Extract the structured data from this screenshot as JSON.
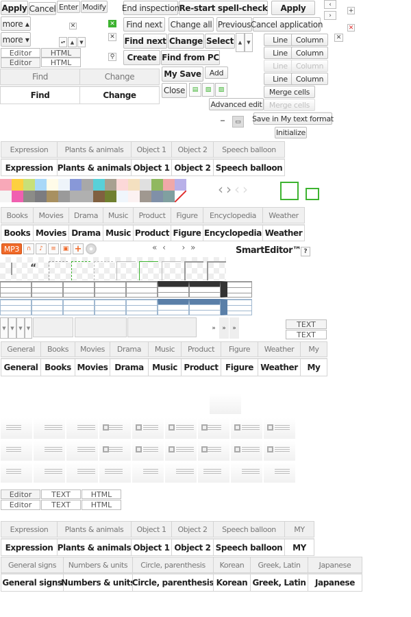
{
  "top_buttons": {
    "apply": "Apply",
    "cancel": "Cancel",
    "enter": "Enter",
    "modify": "Modify",
    "more_up": "more ▴",
    "more_down": "more ▾"
  },
  "mode_tabs_1": {
    "editor": "Editor",
    "html": "HTML",
    "editor2": "Editor",
    "html2": "HTML"
  },
  "find_change": {
    "find": "Find",
    "change": "Change",
    "find_active": "Find",
    "change_active": "Change"
  },
  "spell": {
    "end_inspection": "End inspection",
    "restart": "Re-start spell-check",
    "apply": "Apply"
  },
  "find_bar": {
    "find_next": "Find next",
    "change_all": "Change all",
    "previous": "Previous",
    "cancel_application": "Cancel application"
  },
  "find_bar_bold": {
    "find_next": "Find next",
    "change": "Change",
    "select": "Select"
  },
  "create_bar": {
    "create": "Create",
    "find_from_pc": "Find from PC",
    "my_save": "My Save",
    "add": "Add",
    "close": "Close",
    "advanced_edit": "Advanced edit",
    "save_my_text": "Save in My text format",
    "initialize": "Initialize"
  },
  "table_edit": {
    "line": "Line",
    "column": "Column",
    "merge_cells": "Merge cells"
  },
  "emoticon_tabs": [
    "Expression",
    "Plants & animals",
    "Object 1",
    "Object 2",
    "Speech balloon"
  ],
  "category_tabs": [
    "Books",
    "Movies",
    "Drama",
    "Music",
    "Product",
    "Figure",
    "Encyclopedia",
    "Weather"
  ],
  "swatches": {
    "top": [
      "#f8a8b8",
      "#fdd040",
      "#c8e078",
      "#a8d8f8",
      "#fffbe8",
      "#eef4fa",
      "#8898d8",
      "#a8a8a8",
      "#58d0d8",
      "#a8a090",
      "#fcd8d8",
      "#f4e0c0",
      "#e0e0e0",
      "#90b860",
      "#f0a8a8",
      "#b8b0e8"
    ],
    "bottom": [
      "#f4f4f4",
      "#f060b0",
      "#8c8c88",
      "#7c7c80",
      "#a89060",
      "#9a9a9a",
      "#b0b0b0",
      "#b0b0b0",
      "#806040",
      "#708030",
      "#f0f6fc",
      "#fcf2f2",
      "#a09890",
      "#8090a8",
      "#80a0a0",
      "#ffffff"
    ]
  },
  "media_icons": {
    "mp3": "MP3",
    "accent": "#f06a2a"
  },
  "pagination": {
    "first": "«",
    "prev": "‹",
    "next": "›",
    "last": "»"
  },
  "logo": {
    "text": "SmartEditor™",
    "help": "?"
  },
  "text_buttons": {
    "text1": "TEXT",
    "text2": "TEXT",
    "more": "»"
  },
  "category_tabs_2": [
    "General",
    "Books",
    "Movies",
    "Drama",
    "Music",
    "Product",
    "Figure",
    "Weather",
    "My"
  ],
  "mode_tabs_2": {
    "editor": "Editor",
    "text": "TEXT",
    "html": "HTML",
    "editor2": "Editor",
    "text2": "TEXT",
    "html2": "HTML"
  },
  "emoticon_tabs_2": [
    "Expression",
    "Plants & animals",
    "Object 1",
    "Object 2",
    "Speech balloon",
    "MY"
  ],
  "symbol_tabs": [
    "General signs",
    "Numbers & units",
    "Circle, parenthesis",
    "Korean",
    "Greek, Latin",
    "Japanese"
  ],
  "colors": {
    "green": "#3db330",
    "red": "#e03030",
    "table_blue": "#5a7fa8"
  }
}
